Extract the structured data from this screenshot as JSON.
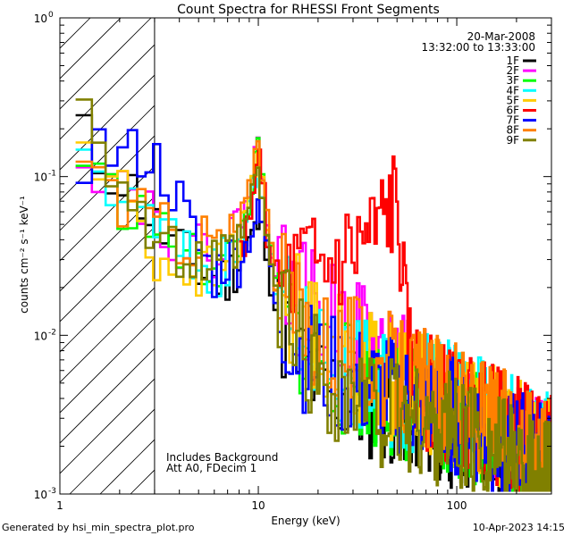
{
  "chart_data": {
    "type": "line",
    "title": "Count Spectra for RHESSI Front Segments",
    "xlabel": "Energy (keV)",
    "ylabel": "counts cm⁻² s⁻¹ keV⁻¹",
    "xscale": "log",
    "yscale": "log",
    "xlim": [
      1,
      300
    ],
    "ylim": [
      0.001,
      1
    ],
    "x_ticks": [
      {
        "value": 1,
        "label": "1"
      },
      {
        "value": 10,
        "label": "10"
      },
      {
        "value": 100,
        "label": "100"
      }
    ],
    "y_ticks": [
      {
        "value": 1,
        "base": "10",
        "exp": "0"
      },
      {
        "value": 0.1,
        "base": "10",
        "exp": "-1"
      },
      {
        "value": 0.01,
        "base": "10",
        "exp": "-2"
      },
      {
        "value": 0.001,
        "base": "10",
        "exp": "-3"
      }
    ],
    "hatched_region_max_energy": 3,
    "date": "20-Mar-2008",
    "time_range": "13:32:00 to 13:33:00",
    "annotations": [
      "Includes Background",
      "Att A0, FDecim 1"
    ],
    "series": [
      {
        "name": "1F",
        "color": "#000000",
        "seed": 11,
        "x": [
          1.2,
          1.5,
          2,
          2.5,
          3,
          4,
          5,
          6,
          7,
          8,
          9,
          10,
          11,
          12,
          15,
          20,
          30,
          50,
          100,
          300
        ],
        "y": [
          0.22,
          0.13,
          0.1,
          0.075,
          0.05,
          0.035,
          0.025,
          0.022,
          0.023,
          0.03,
          0.04,
          0.05,
          0.038,
          0.016,
          0.008,
          0.005,
          0.004,
          0.0035,
          0.0025,
          0.0015
        ]
      },
      {
        "name": "2F",
        "color": "#ff00ff",
        "seed": 22,
        "x": [
          1.2,
          1.5,
          2,
          2.5,
          3,
          4,
          5,
          6,
          7,
          8,
          9,
          10,
          11,
          12,
          15,
          20,
          30,
          50,
          100,
          300
        ],
        "y": [
          0.2,
          0.12,
          0.1,
          0.08,
          0.055,
          0.04,
          0.033,
          0.035,
          0.04,
          0.05,
          0.08,
          0.17,
          0.06,
          0.03,
          0.018,
          0.014,
          0.011,
          0.006,
          0.0032,
          0.0015
        ]
      },
      {
        "name": "3F",
        "color": "#00ff00",
        "seed": 33,
        "x": [
          1.2,
          1.5,
          2,
          2.5,
          3,
          4,
          5,
          6,
          7,
          8,
          9,
          10,
          11,
          12,
          15,
          20,
          30,
          50,
          100,
          300
        ],
        "y": [
          0.18,
          0.1,
          0.07,
          0.06,
          0.045,
          0.035,
          0.028,
          0.028,
          0.03,
          0.04,
          0.07,
          0.15,
          0.05,
          0.022,
          0.011,
          0.007,
          0.005,
          0.004,
          0.003,
          0.0015
        ]
      },
      {
        "name": "4F",
        "color": "#00ffff",
        "seed": 44,
        "x": [
          1.2,
          1.5,
          2,
          2.5,
          3,
          4,
          5,
          6,
          7,
          8,
          9,
          10,
          11,
          12,
          15,
          20,
          30,
          50,
          100,
          300
        ],
        "y": [
          0.19,
          0.11,
          0.075,
          0.058,
          0.05,
          0.036,
          0.028,
          0.026,
          0.028,
          0.035,
          0.06,
          0.14,
          0.045,
          0.02,
          0.012,
          0.008,
          0.006,
          0.0045,
          0.004,
          0.0018
        ]
      },
      {
        "name": "5F",
        "color": "#ffcc00",
        "seed": 55,
        "x": [
          1.2,
          1.5,
          2,
          2.5,
          3,
          4,
          5,
          6,
          7,
          8,
          9,
          10,
          11,
          12,
          15,
          20,
          30,
          50,
          100,
          300
        ],
        "y": [
          0.16,
          0.12,
          0.085,
          0.06,
          0.03,
          0.028,
          0.025,
          0.025,
          0.03,
          0.04,
          0.07,
          0.15,
          0.05,
          0.025,
          0.015,
          0.01,
          0.007,
          0.005,
          0.0035,
          0.0018
        ]
      },
      {
        "name": "6F",
        "color": "#ff0000",
        "seed": 66,
        "x": [
          8,
          9,
          10,
          11,
          12,
          13,
          15,
          18,
          20,
          25,
          30,
          35,
          40,
          45,
          48,
          50,
          52,
          55,
          58,
          60,
          65,
          70,
          80,
          100,
          300
        ],
        "y": [
          0.03,
          0.05,
          0.16,
          0.045,
          0.022,
          0.02,
          0.024,
          0.028,
          0.025,
          0.03,
          0.034,
          0.04,
          0.045,
          0.06,
          0.066,
          0.062,
          0.04,
          0.012,
          0.007,
          0.006,
          0.005,
          0.0045,
          0.004,
          0.0035,
          0.0018
        ]
      },
      {
        "name": "7F",
        "color": "#0000ff",
        "seed": 77,
        "x": [
          1.2,
          1.5,
          2,
          2.5,
          3,
          4,
          5,
          6,
          7,
          8,
          9,
          10,
          11,
          12,
          15,
          20,
          30,
          50,
          100,
          300
        ],
        "y": [
          0.11,
          0.16,
          0.13,
          0.14,
          0.13,
          0.07,
          0.035,
          0.024,
          0.03,
          0.03,
          0.04,
          0.06,
          0.04,
          0.018,
          0.009,
          0.006,
          0.005,
          0.004,
          0.003,
          0.0015
        ]
      },
      {
        "name": "8F",
        "color": "#ff8000",
        "seed": 88,
        "x": [
          1.2,
          1.5,
          2,
          2.5,
          3,
          4,
          5,
          6,
          7,
          8,
          9,
          10,
          11,
          12,
          15,
          20,
          30,
          50,
          100,
          300
        ],
        "y": [
          0.18,
          0.12,
          0.07,
          0.06,
          0.05,
          0.042,
          0.04,
          0.04,
          0.04,
          0.05,
          0.08,
          0.2,
          0.06,
          0.025,
          0.014,
          0.01,
          0.008,
          0.0055,
          0.0038,
          0.0018
        ]
      },
      {
        "name": "9F",
        "color": "#808000",
        "seed": 99,
        "x": [
          1.2,
          1.5,
          2,
          2.5,
          3,
          4,
          5,
          6,
          7,
          8,
          9,
          10,
          11,
          12,
          15,
          20,
          30,
          50,
          100,
          300
        ],
        "y": [
          0.42,
          0.22,
          0.1,
          0.06,
          0.04,
          0.03,
          0.028,
          0.027,
          0.03,
          0.035,
          0.06,
          0.12,
          0.04,
          0.02,
          0.01,
          0.006,
          0.004,
          0.003,
          0.0025,
          0.0012
        ]
      }
    ]
  },
  "footer": {
    "generated_by": "Generated by hsi_min_spectra_plot.pro",
    "timestamp": "10-Apr-2023 14:15"
  }
}
